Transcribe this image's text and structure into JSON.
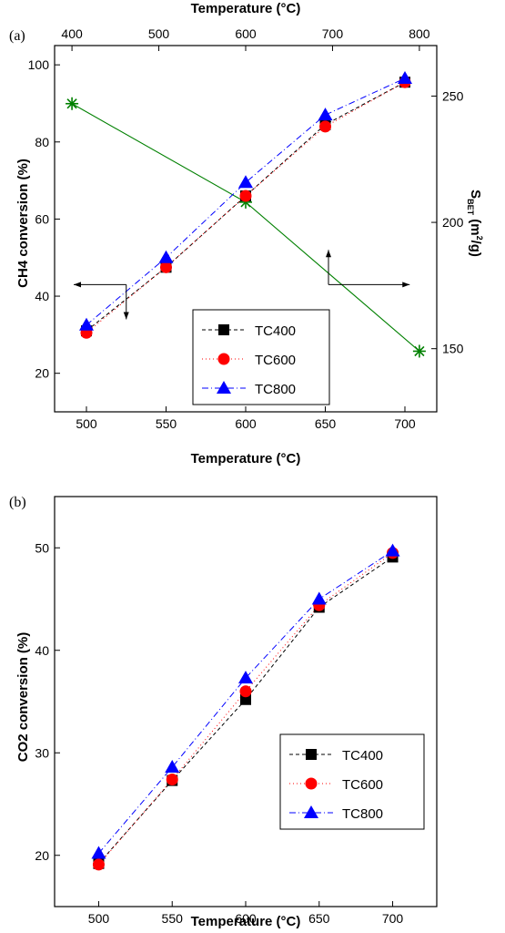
{
  "chart_data": [
    {
      "type": "line",
      "panel_label": "(a)",
      "xlabel": "Temperature (°C)",
      "x2label": "Temperature (°C)",
      "ylabel": "CH4 conversion (%)",
      "y2label_main": "S",
      "y2label_sub": "BET",
      "y2label_unit": " (m",
      "y2label_sup": "2",
      "y2label_end": "/g)",
      "xlim": [
        480,
        720
      ],
      "ylim": [
        10,
        105
      ],
      "x2lim": [
        380,
        820
      ],
      "y2lim": [
        125,
        270
      ],
      "xticks": [
        500,
        550,
        600,
        650,
        700
      ],
      "yticks": [
        20,
        40,
        60,
        80,
        100
      ],
      "x2ticks": [
        400,
        500,
        600,
        700,
        800
      ],
      "y2ticks": [
        150,
        200,
        250
      ],
      "legend_position": "bottom-right",
      "grid": false,
      "series": [
        {
          "name": "TC400",
          "marker": "square",
          "color": "#000000",
          "dash": "4,3",
          "x": [
            500,
            550,
            600,
            650,
            700
          ],
          "y": [
            31,
            47.5,
            66,
            84.5,
            95.5
          ]
        },
        {
          "name": "TC600",
          "marker": "circle",
          "color": "#ff0000",
          "dash": "1,3",
          "x": [
            500,
            550,
            600,
            650,
            700
          ],
          "y": [
            30.5,
            47.5,
            66,
            84,
            95.5
          ]
        },
        {
          "name": "TC800",
          "marker": "triangle",
          "color": "#0000ff",
          "dash": "7,3,1,3",
          "x": [
            500,
            550,
            600,
            650,
            700
          ],
          "y": [
            32.5,
            50,
            69.5,
            87,
            96.5
          ]
        }
      ],
      "surface_area_series": {
        "marker": "star",
        "color": "#008000",
        "axes": "top-right",
        "x": [
          400,
          600,
          800
        ],
        "y": [
          247,
          208,
          149
        ]
      },
      "arrows": [
        {
          "vertex": [
            525,
            43
          ],
          "to_x": 492,
          "to_y": 34,
          "target": "left axis"
        },
        {
          "vertex": [
            652,
            43
          ],
          "to_x": 703,
          "to_y": 52,
          "target": "right axis"
        }
      ]
    },
    {
      "type": "line",
      "panel_label": "(b)",
      "xlabel": "Temperature (°C)",
      "ylabel": "CO2 conversion (%)",
      "xlim": [
        470,
        730
      ],
      "ylim": [
        15,
        55
      ],
      "xticks": [
        500,
        550,
        600,
        650,
        700
      ],
      "yticks": [
        20,
        30,
        40,
        50
      ],
      "legend_position": "bottom-right",
      "grid": false,
      "series": [
        {
          "name": "TC400",
          "marker": "square",
          "color": "#000000",
          "dash": "4,3",
          "x": [
            500,
            550,
            600,
            650,
            700
          ],
          "y": [
            19.2,
            27.3,
            35.2,
            44.2,
            49.1
          ]
        },
        {
          "name": "TC600",
          "marker": "circle",
          "color": "#ff0000",
          "dash": "1,3",
          "x": [
            500,
            550,
            600,
            650,
            700
          ],
          "y": [
            19.1,
            27.4,
            36.0,
            44.4,
            49.5
          ]
        },
        {
          "name": "TC800",
          "marker": "triangle",
          "color": "#0000ff",
          "dash": "7,3,1,3",
          "x": [
            500,
            550,
            600,
            650,
            700
          ],
          "y": [
            20.2,
            28.6,
            37.3,
            45.0,
            49.7
          ]
        }
      ]
    }
  ]
}
